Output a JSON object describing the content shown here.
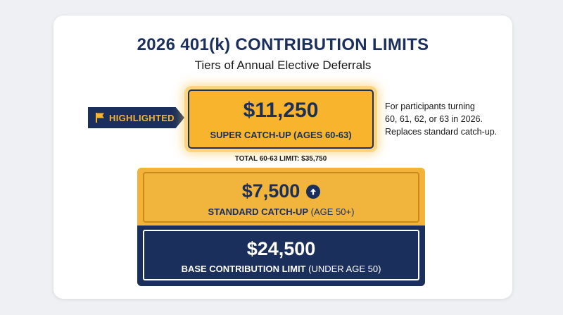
{
  "title": "2026 401(k) CONTRIBUTION LIMITS",
  "subtitle": "Tiers of Annual Elective Deferrals",
  "highlight_badge": {
    "label": "HIGHLIGHTED",
    "icon": "flag-icon"
  },
  "super_catch_up": {
    "amount": "$11,250",
    "label": "SUPER CATCH-UP (AGES 60-63)"
  },
  "side_note": {
    "lines": [
      "For participants turning",
      "60, 61, 62, or 63 in 2026.",
      "Replaces standard catch-up."
    ]
  },
  "total_note": "TOTAL 60-63 LIMIT: $35,750",
  "standard_catch_up": {
    "amount": "$7,500",
    "icon": "arrow-up-icon",
    "label_strong": "STANDARD CATCH-UP",
    "label_rest": " (AGE 50+)"
  },
  "base": {
    "amount": "$24,500",
    "label_strong": "BASE CONTRIBUTION LIMIT",
    "label_rest": " (UNDER AGE 50)"
  },
  "colors": {
    "navy": "#1b2f5c",
    "gold": "#f7b42c",
    "gold_dark": "#c98a1a",
    "background": "#eef0f3"
  }
}
